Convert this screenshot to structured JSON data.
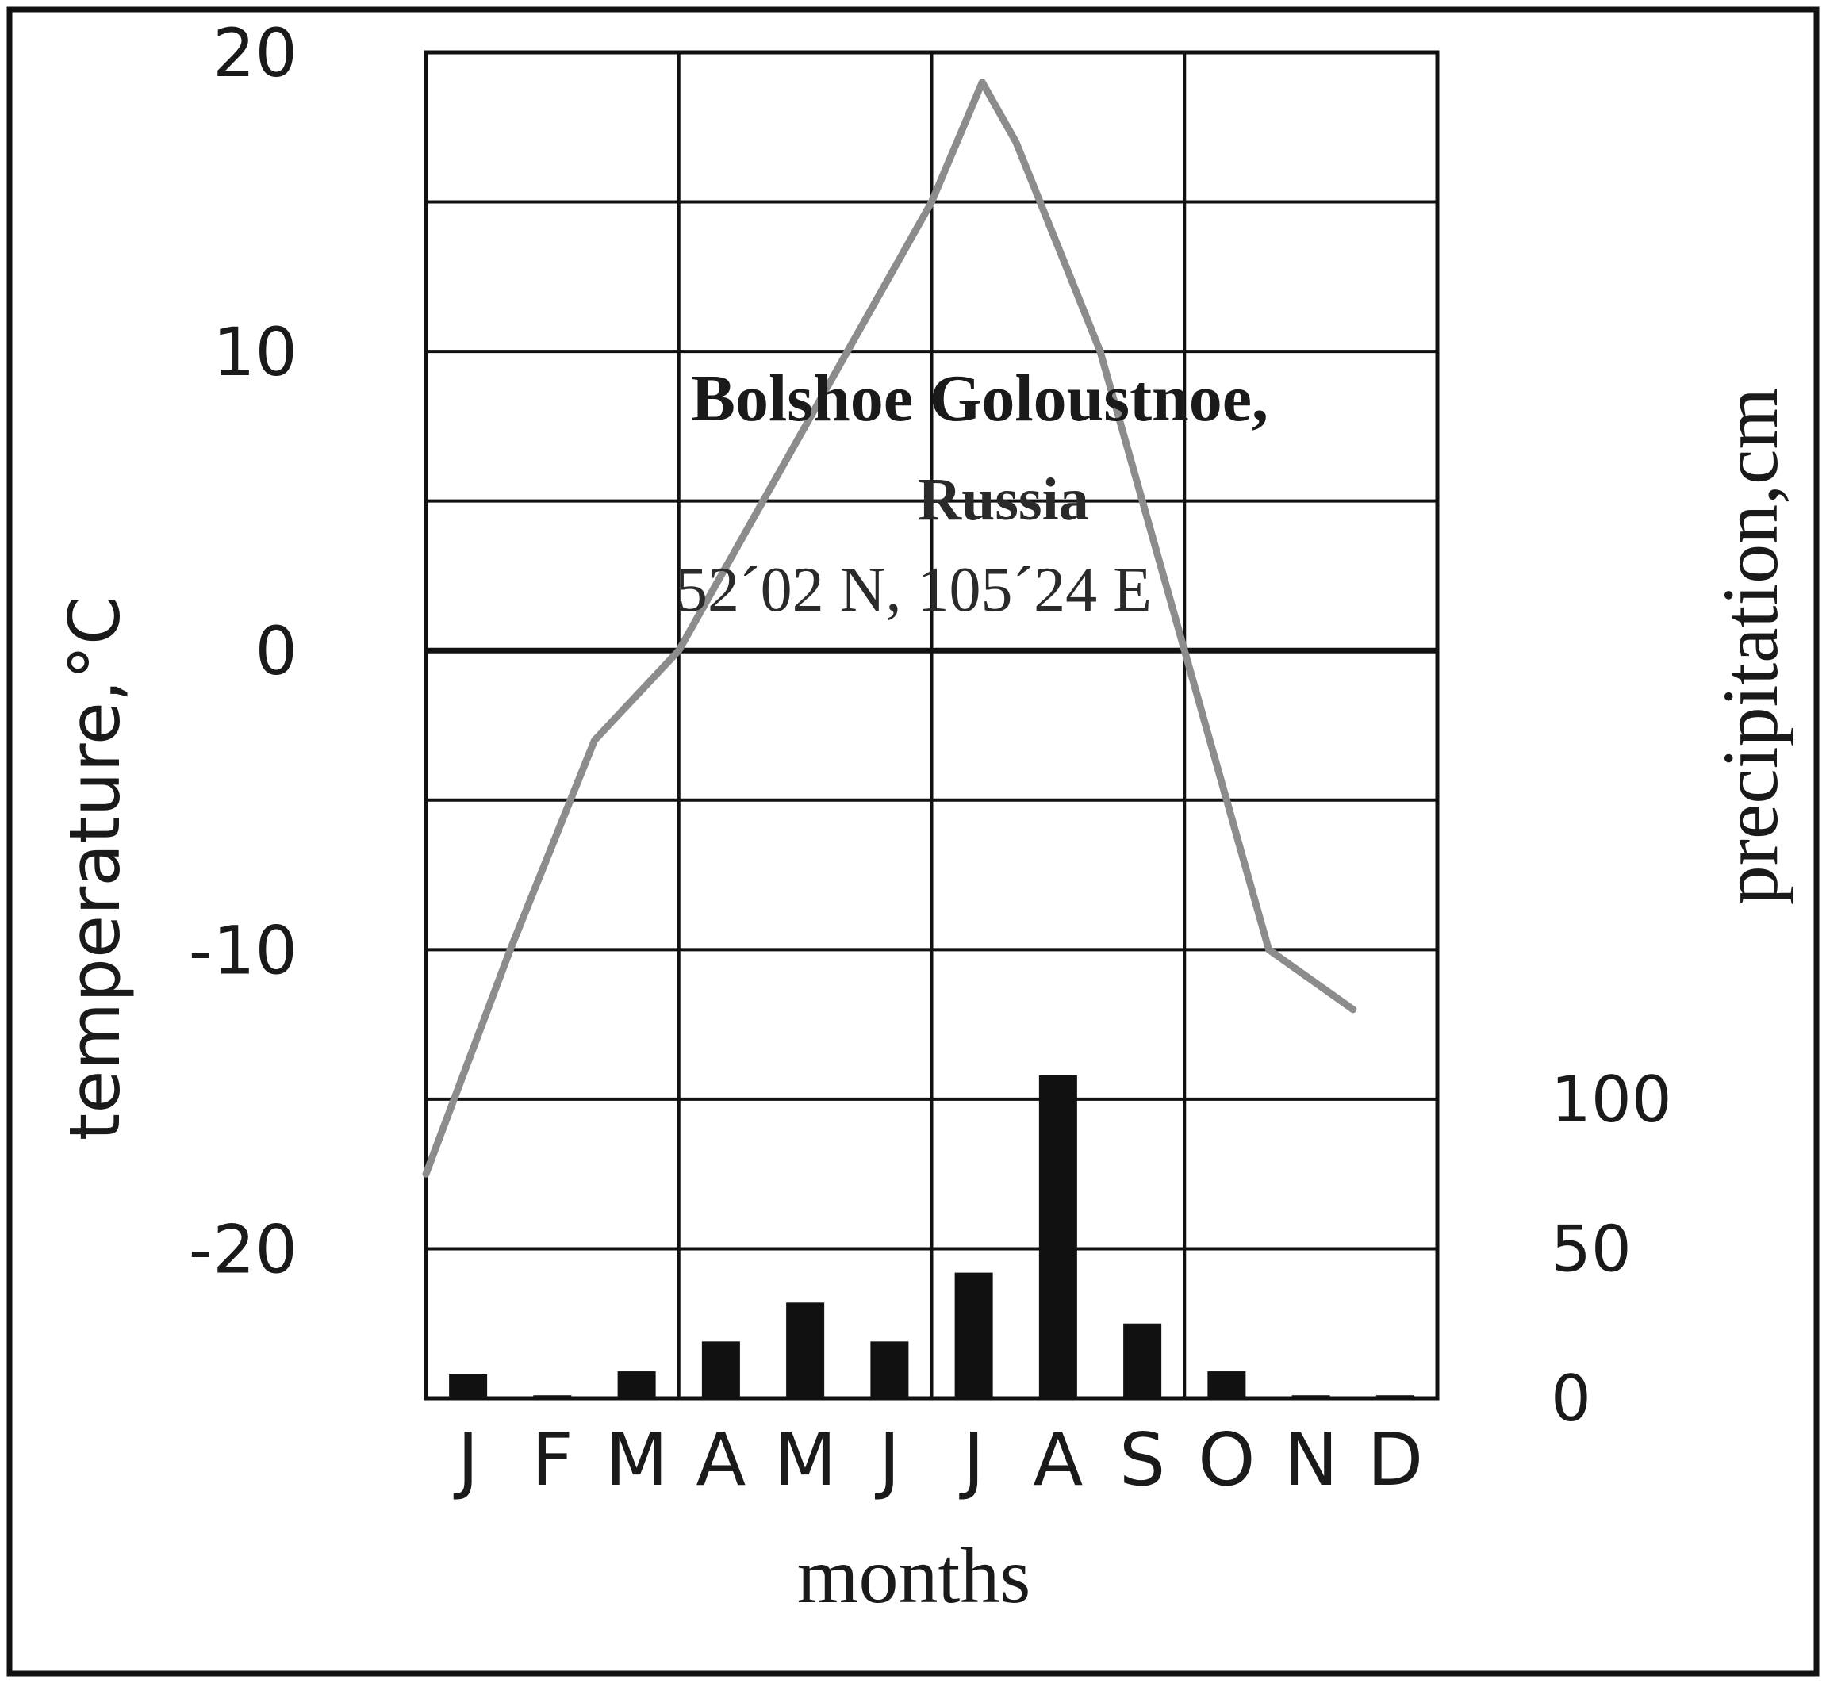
{
  "chart_data": {
    "type": "line+bar",
    "title_lines": [
      "Bolshoe Goloustnoe,",
      "Russia",
      "52´02 N, 105´24 E"
    ],
    "xlabel": "months",
    "ylabel_left": "temperature,°C",
    "ylabel_right": "precipitation,cm",
    "categories": [
      "J",
      "F",
      "M",
      "A",
      "M",
      "J",
      "J",
      "A",
      "S",
      "O",
      "N",
      "D"
    ],
    "y_left_ticks": [
      "20",
      "10",
      "0",
      "-10",
      "-20"
    ],
    "y_right_ticks": [
      "100",
      "50",
      "0"
    ],
    "ylim_left": [
      -25,
      20
    ],
    "ylim_right": [
      0,
      450
    ],
    "grid": true,
    "temperature": {
      "x": [
        0,
        1,
        2,
        3,
        4,
        5,
        6,
        6.6,
        7,
        8,
        9,
        10,
        11
      ],
      "y": [
        -17.5,
        -10,
        -3,
        0,
        5,
        10,
        15,
        19,
        17,
        10,
        0,
        -10,
        -12
      ]
    },
    "precipitation": [
      8,
      1,
      9,
      19,
      32,
      19,
      42,
      108,
      25,
      9,
      1,
      1
    ],
    "line_color": "#8c8c8c",
    "bar_color": "#111111"
  }
}
